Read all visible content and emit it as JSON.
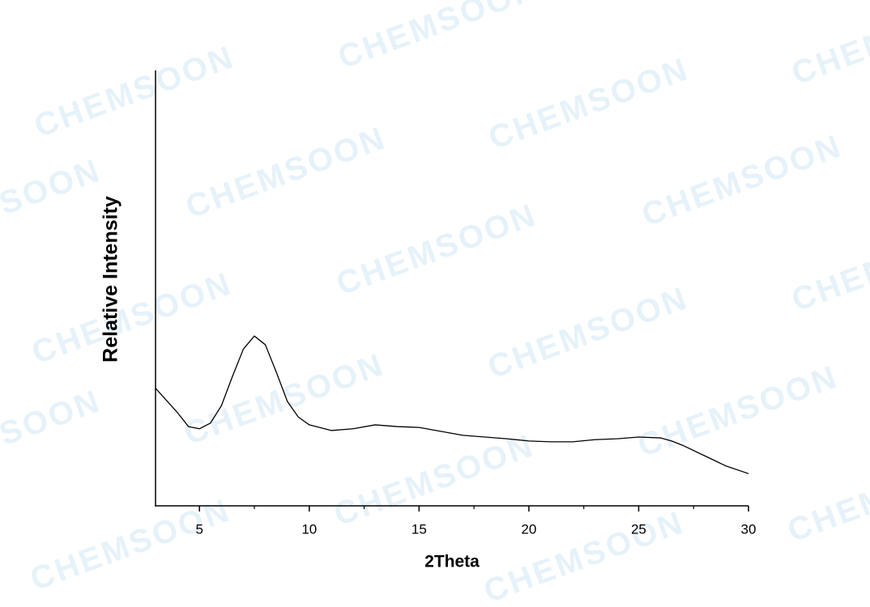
{
  "chart_data": {
    "type": "line",
    "watermark": "CHEMSOON",
    "xlabel": "2Theta",
    "ylabel": "Relative Intensity",
    "x": [
      3,
      4,
      4.5,
      5,
      5.5,
      6,
      6.5,
      7,
      7.5,
      8,
      8.5,
      9,
      9.5,
      10,
      11,
      12,
      13,
      14,
      15,
      16,
      17,
      18,
      19,
      20,
      21,
      22,
      23,
      24,
      25,
      26,
      26.5,
      27,
      28,
      29,
      30
    ],
    "values": [
      27,
      21.4,
      18.2,
      17.7,
      19,
      23,
      29.7,
      36,
      39,
      37,
      30.7,
      24,
      20.4,
      18.6,
      17.3,
      17.7,
      18.6,
      18.2,
      18,
      17.1,
      16.2,
      15.8,
      15.4,
      14.9,
      14.7,
      14.7,
      15.2,
      15.4,
      15.8,
      15.6,
      14.9,
      13.9,
      11.5,
      9.1,
      7.4
    ],
    "color": "#000000",
    "xlim": [
      3,
      30
    ],
    "ylim": [
      0,
      100
    ],
    "xticks": [
      5,
      10,
      15,
      20,
      25,
      30
    ],
    "xminorticks": [
      7.5,
      12.5,
      17.5,
      22.5,
      27.5
    ]
  }
}
